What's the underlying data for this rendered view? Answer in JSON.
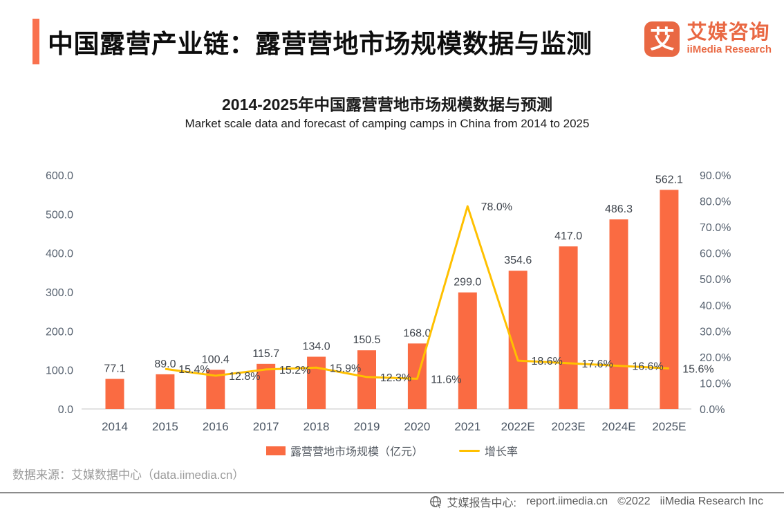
{
  "header": {
    "title": "中国露营产业链：露营营地市场规模数据与监测",
    "logo": {
      "glyph": "艾",
      "name_cn": "艾媒咨询",
      "name_en": "iiMedia Research"
    }
  },
  "chart": {
    "title": "2014-2025年中国露营营地市场规模数据与预测",
    "subtitle": "Market scale data and forecast of camping camps in China from 2014 to 2025"
  },
  "chart_data": {
    "type": "bar",
    "categories": [
      "2014",
      "2015",
      "2016",
      "2017",
      "2018",
      "2019",
      "2020",
      "2021",
      "2022E",
      "2023E",
      "2024E",
      "2025E"
    ],
    "series": [
      {
        "name": "露营营地市场规模（亿元）",
        "type": "bar",
        "color": "#FA6B42",
        "values": [
          77.1,
          89.0,
          100.4,
          115.7,
          134.0,
          150.5,
          168.0,
          299.0,
          354.6,
          417.0,
          486.3,
          562.1
        ],
        "labels": [
          "77.1",
          "89.0",
          "100.4",
          "115.7",
          "134.0",
          "150.5",
          "168.0",
          "299.0",
          "354.6",
          "417.0",
          "486.3",
          "562.1"
        ]
      },
      {
        "name": "增长率",
        "type": "line",
        "color": "#FFC000",
        "values": [
          null,
          15.4,
          12.8,
          15.2,
          15.9,
          12.3,
          11.6,
          78.0,
          18.6,
          17.6,
          16.6,
          15.6
        ],
        "labels": [
          "",
          "15.4%",
          "12.8%",
          "15.2%",
          "15.9%",
          "12.3%",
          "11.6%",
          "78.0%",
          "18.6%",
          "17.6%",
          "16.6%",
          "15.6%"
        ]
      }
    ],
    "left_axis": {
      "min": 0,
      "max": 600,
      "ticks": [
        "0.0",
        "100.0",
        "200.0",
        "300.0",
        "400.0",
        "500.0",
        "600.0"
      ]
    },
    "right_axis": {
      "min": 0,
      "max": 90,
      "ticks": [
        "0.0%",
        "10.0%",
        "20.0%",
        "30.0%",
        "40.0%",
        "50.0%",
        "60.0%",
        "70.0%",
        "80.0%",
        "90.0%"
      ]
    },
    "legend_position": "bottom",
    "grid": false
  },
  "footer": {
    "source": "数据来源：艾媒数据中心（data.iimedia.cn）"
  },
  "bottombar": {
    "label": "艾媒报告中心:",
    "url": "report.iimedia.cn",
    "copyright": "©2022",
    "company": "iiMedia Research Inc"
  }
}
